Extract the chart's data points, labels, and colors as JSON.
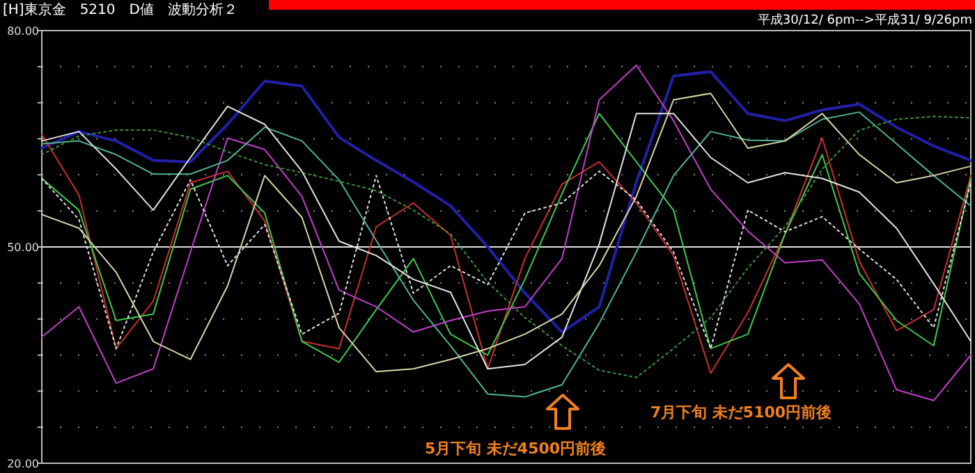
{
  "chart_data": {
    "type": "line",
    "title": "[H]東京金　5210　D値　波動分析２",
    "subtitle": "平成30/12/ 6pm-->平成31/ 9/26pm",
    "categories": [
      null,
      null,
      null,
      null,
      null,
      null,
      null,
      null,
      null,
      null,
      null,
      null,
      null,
      null,
      null,
      null,
      null,
      null,
      null,
      null,
      null,
      null,
      null,
      null,
      null,
      null
    ],
    "ylim": [
      20,
      80
    ],
    "yticks": [
      {
        "value": 20,
        "label": "20.00"
      },
      {
        "value": 25,
        "label": null
      },
      {
        "value": 30,
        "label": null
      },
      {
        "value": 35,
        "label": null
      },
      {
        "value": 40,
        "label": null
      },
      {
        "value": 45,
        "label": null
      },
      {
        "value": 50,
        "label": "50.00"
      },
      {
        "value": 55,
        "label": null
      },
      {
        "value": 60,
        "label": null
      },
      {
        "value": 65,
        "label": null
      },
      {
        "value": 70,
        "label": null
      },
      {
        "value": 75,
        "label": null
      },
      {
        "value": 80,
        "label": "80.00"
      }
    ],
    "grid": "y",
    "marker": "none",
    "ref_lines": [
      {
        "axis": "y",
        "value": 50,
        "color": "#e0e0e0"
      }
    ],
    "annotations": [
      "5月下旬 未だ4500円前後",
      "7月下旬 未だ5100円前後"
    ],
    "series": [
      {
        "color": "#2020a8",
        "line_style": "solid",
        "values": [
          63.7,
          66,
          64.7,
          62,
          61.8,
          67,
          73,
          72.3,
          65.2,
          62,
          59,
          55.7,
          50,
          43.6,
          38.2,
          41.7,
          59,
          73.7,
          74.3,
          68.5,
          67.5,
          69,
          69.8,
          66.6,
          64,
          62
        ]
      },
      {
        "color": "#c83030",
        "line_style": "solid",
        "values": [
          65.6,
          57.2,
          35.9,
          42.5,
          58.9,
          60.5,
          53.6,
          36.9,
          35.9,
          52.8,
          56.1,
          51.6,
          33.1,
          48.4,
          58.7,
          61.8,
          56.1,
          48.8,
          32.5,
          40.9,
          51.8,
          65.1,
          48,
          38.4,
          41.3,
          59.9
        ]
      },
      {
        "color": "#40c850",
        "line_style": "solid",
        "values": [
          59.5,
          55.1,
          39.8,
          40.7,
          58,
          59.9,
          54.7,
          36.9,
          34,
          41.3,
          48.4,
          37.9,
          35,
          45.5,
          57.4,
          68.5,
          61.8,
          55.1,
          35.9,
          37.9,
          51.8,
          62.8,
          46.3,
          39.8,
          36.3,
          59.5
        ]
      },
      {
        "color": "#c040c8",
        "line_style": "solid",
        "values": [
          37.5,
          41.7,
          31.1,
          33.1,
          49.3,
          65.1,
          63.5,
          57,
          44,
          41.7,
          38.2,
          39.8,
          41.1,
          41.7,
          48.4,
          70.4,
          75.2,
          67.5,
          58,
          52.2,
          47.8,
          48.2,
          42.1,
          30.2,
          28.7,
          35
        ]
      },
      {
        "color": "#50b498",
        "line_style": "solid",
        "values": [
          64.3,
          64.7,
          62.8,
          60.1,
          60.1,
          62,
          66.6,
          64.7,
          59.3,
          50.9,
          42.6,
          36.3,
          29.6,
          29.2,
          30.9,
          39.4,
          49.3,
          59.9,
          66,
          64.8,
          64.7,
          67.7,
          68.7,
          64.3,
          59.9,
          55.7
        ]
      },
      {
        "color": "#3c963c",
        "line_style": "dotted",
        "values": [
          62.8,
          65.4,
          66.2,
          66.2,
          65.2,
          63.2,
          61.4,
          60.3,
          59.1,
          57.8,
          55.1,
          51.8,
          45.1,
          40.2,
          36.3,
          32.9,
          31.9,
          35.9,
          40.2,
          47.1,
          52.8,
          60.8,
          66.2,
          67.7,
          68.1,
          67.9
        ]
      },
      {
        "color": "#e4e4e4",
        "line_style": "solid",
        "values": [
          64.7,
          66,
          60.8,
          55.1,
          62.4,
          69.5,
          67,
          60.5,
          50.8,
          48.8,
          45.5,
          43.7,
          33.1,
          33.7,
          37.5,
          50.4,
          68.5,
          68.5,
          62.4,
          58.9,
          60.3,
          59.5,
          57.6,
          52.6,
          44.9,
          36.9
        ]
      },
      {
        "color": "#d8d8a8",
        "line_style": "solid",
        "values": [
          54.5,
          52.6,
          46.5,
          36.9,
          34.4,
          44.6,
          59.9,
          54.1,
          38.8,
          32.7,
          33.1,
          34.4,
          35.9,
          37.9,
          40.7,
          47.4,
          57,
          70.4,
          71.3,
          63.7,
          64.7,
          68.5,
          62.8,
          58.9,
          59.9,
          61.2
        ]
      },
      {
        "color": "#e4e4e4",
        "line_style": "dotted",
        "values": [
          59.5,
          53.8,
          35.9,
          49.3,
          59.3,
          47.4,
          53.1,
          37.9,
          40.8,
          59.9,
          43.6,
          47.4,
          44.8,
          54.7,
          56.1,
          60.5,
          56.5,
          49.3,
          35.9,
          55.1,
          52.1,
          54.2,
          49.7,
          45.5,
          38.8,
          58.9
        ]
      }
    ]
  }
}
